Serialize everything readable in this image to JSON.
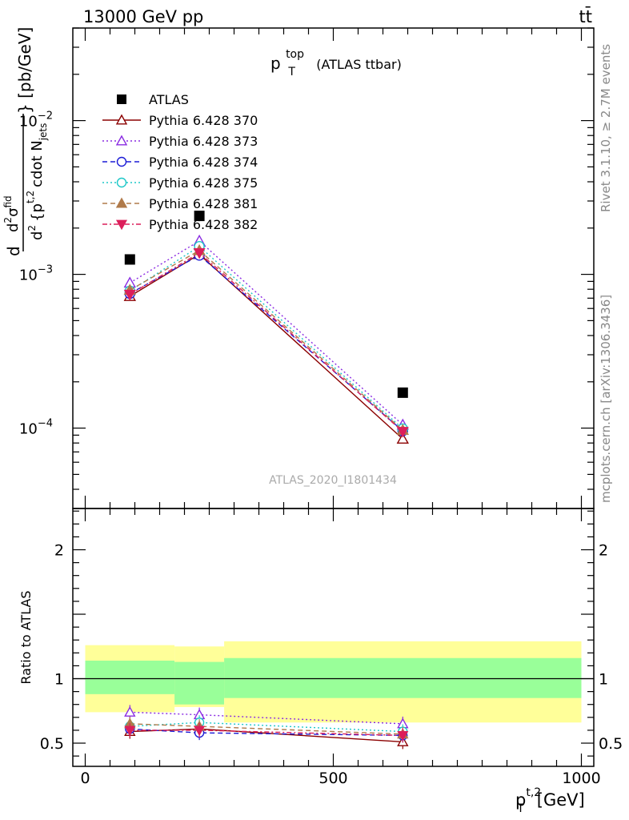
{
  "header": {
    "energy_label": "13000 GeV pp",
    "process_label": "tt̄",
    "right_label_top": "Rivet 3.1.10, ≥ 2.7M events",
    "right_label_bottom": "mcplots.cern.ch [arXiv:1306.3436]",
    "analysis_id": "ATLAS_2020_I1801434"
  },
  "chart_data": [
    {
      "type": "line",
      "title": "p_T^top (ATLAS ttbar)",
      "title_parts": {
        "main": "p",
        "sup": "top",
        "sub": "T",
        "rest": "(ATLAS ttbar)"
      },
      "ylabel": "d²σ^fid / d² {p_T^t,2 cdot N_jets} [pb/GeV]",
      "ylabel_parts": {
        "num_d": "d",
        "num_sup": "2",
        "sigma": "σ",
        "sigma_sup": "fid",
        "den_d": "d",
        "den_sup": "2",
        "den_body": "{p",
        "den_sub": "T",
        "den_sup2": "t,2",
        "den_rest": "cdot N",
        "den_sub2": "jets",
        "units": "} [pb/GeV]"
      },
      "xlim": [
        -25,
        1025
      ],
      "ylim": [
        3e-05,
        0.04
      ],
      "y_scale": "log",
      "y_ticks": [
        {
          "value": 0.01,
          "label": "10",
          "exp": "−2"
        },
        {
          "value": 0.001,
          "label": "10",
          "exp": "−3"
        },
        {
          "value": 0.0001,
          "label": "10",
          "exp": "−4"
        }
      ],
      "x": [
        90,
        230,
        640
      ],
      "series": [
        {
          "name": "ATLAS",
          "marker": "square-filled",
          "color": "#000000",
          "values": [
            0.00125,
            0.0024,
            0.00017
          ]
        },
        {
          "name": "Pythia 6.428 370",
          "marker": "triangle-up-open",
          "color": "#8b0000",
          "dash": "solid",
          "values": [
            0.00072,
            0.00135,
            8.5e-05
          ]
        },
        {
          "name": "Pythia 6.428 373",
          "marker": "triangle-up-open",
          "color": "#8a2be2",
          "dash": "dotted",
          "values": [
            0.00088,
            0.00165,
            0.000105
          ]
        },
        {
          "name": "Pythia 6.428 374",
          "marker": "circle-open",
          "color": "#1c1cd6",
          "dash": "dashed",
          "values": [
            0.00075,
            0.00133,
            9.6e-05
          ]
        },
        {
          "name": "Pythia 6.428 375",
          "marker": "circle-open",
          "color": "#1ec8c8",
          "dash": "dotted",
          "values": [
            0.00078,
            0.00152,
            9.9e-05
          ]
        },
        {
          "name": "Pythia 6.428 381",
          "marker": "triangle-up-filled",
          "color": "#b07a4a",
          "dash": "dashed",
          "values": [
            0.00079,
            0.00143,
            9.7e-05
          ]
        },
        {
          "name": "Pythia 6.428 382",
          "marker": "triangle-down-filled",
          "color": "#dc1e5a",
          "dash": "dashdot",
          "values": [
            0.00074,
            0.00138,
            9.5e-05
          ]
        }
      ],
      "legend_position": "top-left"
    },
    {
      "type": "line",
      "ylabel": "Ratio to ATLAS",
      "xlabel": "p_T^t,2 [GeV]",
      "xlabel_parts": {
        "main": "p",
        "sup": "t,2",
        "sub": "T",
        "rest": "[GeV]"
      },
      "xlim": [
        -25,
        1025
      ],
      "ylim": [
        0.32,
        2.32
      ],
      "x_ticks": [
        0,
        500,
        1000
      ],
      "y_ticks": [
        0.5,
        1,
        2
      ],
      "y_tick_labels": [
        "0.5",
        "1",
        "2"
      ],
      "reference_line": 1,
      "uncertainty_bands": [
        {
          "x_lo": 0,
          "x_hi": 180,
          "outer_lo": 0.74,
          "outer_hi": 1.26,
          "inner_lo": 0.88,
          "inner_hi": 1.14
        },
        {
          "x_lo": 180,
          "x_hi": 280,
          "outer_lo": 0.78,
          "outer_hi": 1.25,
          "inner_lo": 0.8,
          "inner_hi": 1.13
        },
        {
          "x_lo": 280,
          "x_hi": 1000,
          "outer_lo": 0.66,
          "outer_hi": 1.29,
          "inner_lo": 0.85,
          "inner_hi": 1.16
        }
      ],
      "band_colors": {
        "outer": "#ffff99",
        "inner": "#99ff99"
      },
      "x": [
        90,
        230,
        640
      ],
      "series": [
        {
          "name": "Pythia 6.428 370",
          "values": [
            0.59,
            0.61,
            0.51
          ]
        },
        {
          "name": "Pythia 6.428 373",
          "values": [
            0.74,
            0.72,
            0.65
          ]
        },
        {
          "name": "Pythia 6.428 374",
          "values": [
            0.61,
            0.58,
            0.56
          ]
        },
        {
          "name": "Pythia 6.428 375",
          "values": [
            0.63,
            0.66,
            0.59
          ]
        },
        {
          "name": "Pythia 6.428 381",
          "values": [
            0.65,
            0.63,
            0.57
          ]
        },
        {
          "name": "Pythia 6.428 382",
          "values": [
            0.6,
            0.6,
            0.56
          ]
        }
      ]
    }
  ]
}
